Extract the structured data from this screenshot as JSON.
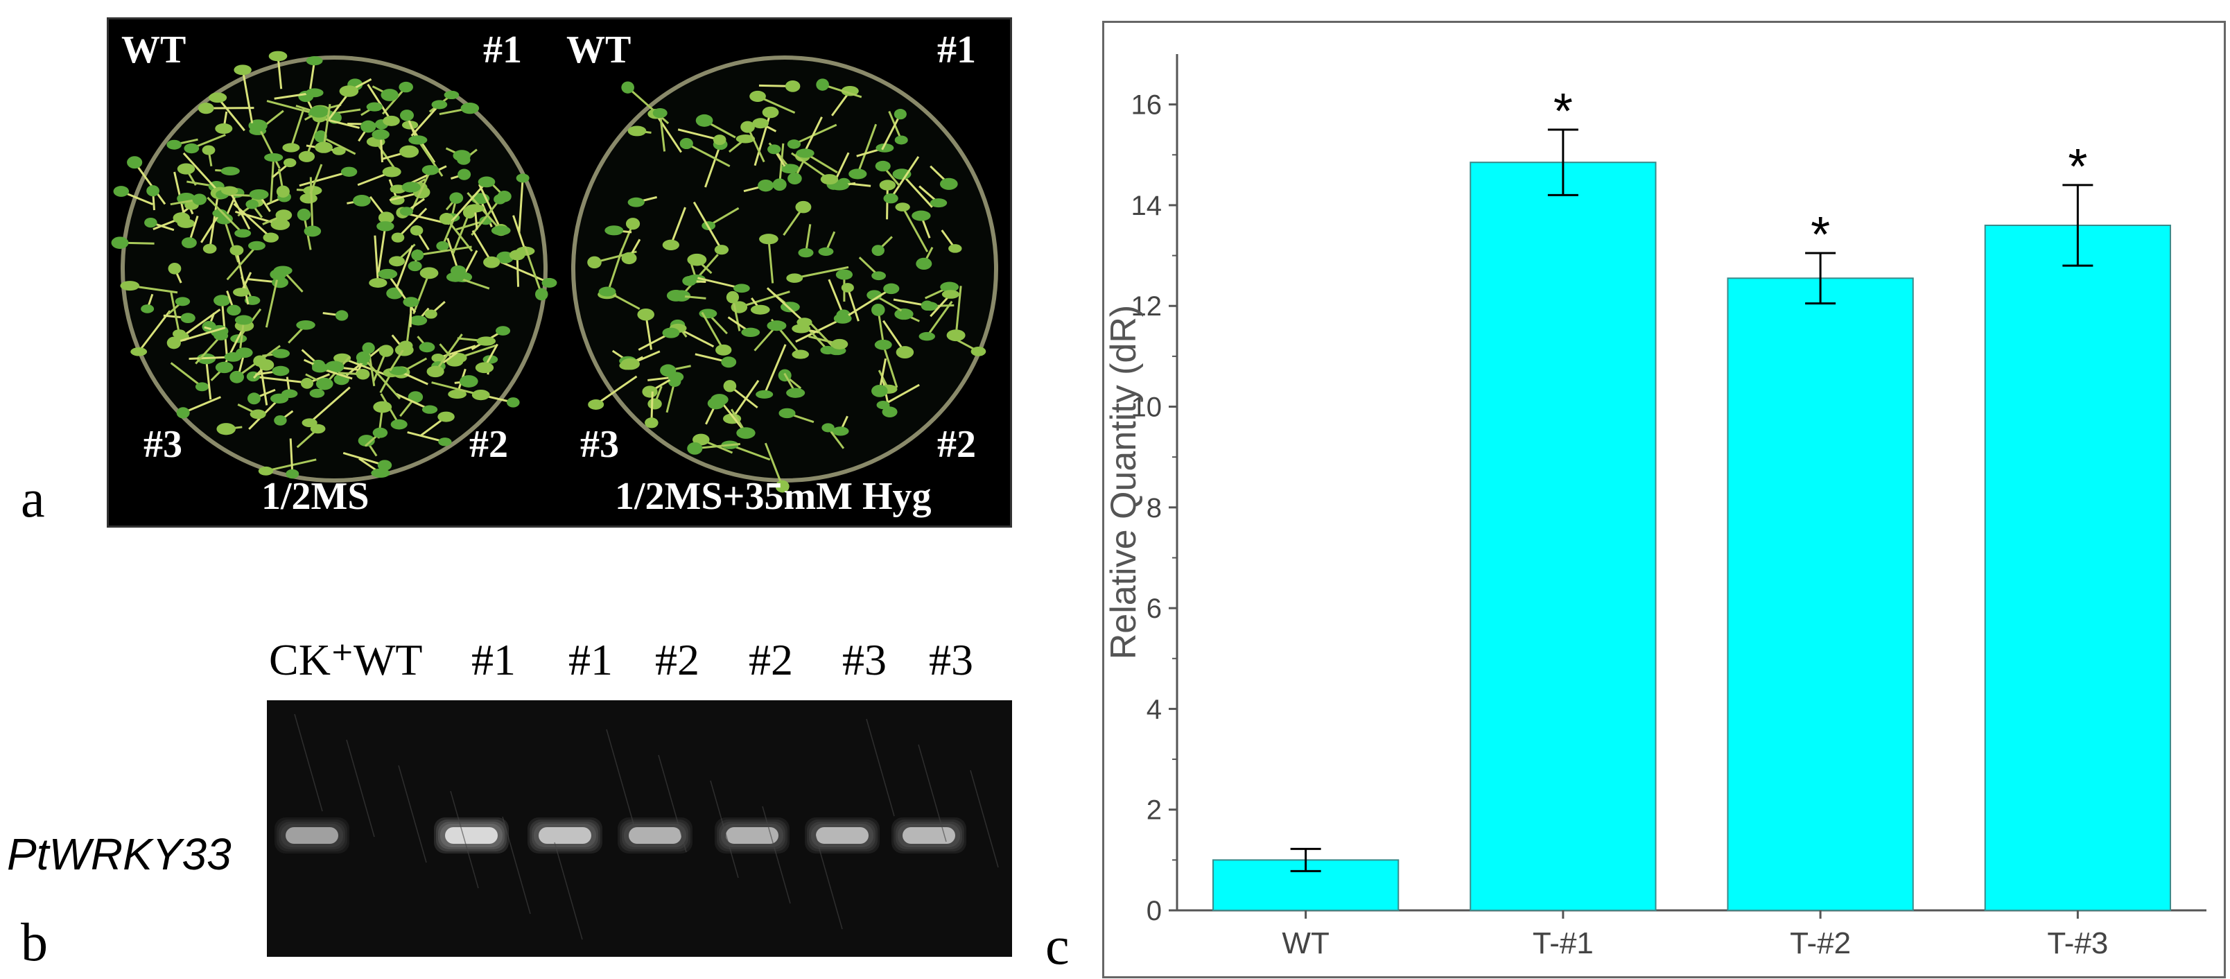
{
  "panels": {
    "a": {
      "letter": "a",
      "left_plate": {
        "labels": {
          "top_left": "WT",
          "top_right": "#1",
          "bottom_left": "#3",
          "bottom_right": "#2"
        },
        "caption": "1/2MS"
      },
      "right_plate": {
        "labels": {
          "top_left": "WT",
          "top_right": "#1",
          "bottom_left": "#3",
          "bottom_right": "#2"
        },
        "caption": "1/2MS+35mM Hyg"
      }
    },
    "b": {
      "letter": "b",
      "lanes": [
        "CK⁺",
        "WT",
        "#1",
        "#1",
        "#2",
        "#2",
        "#3",
        "#3"
      ],
      "gene": "PtWRKY33",
      "band_intensity": [
        0.45,
        0.0,
        1.0,
        0.75,
        0.6,
        0.6,
        0.65,
        0.65
      ]
    },
    "c": {
      "letter": "c"
    }
  },
  "chart_data": {
    "type": "bar",
    "categories": [
      "WT",
      "T-#1",
      "T-#2",
      "T-#3"
    ],
    "series": [
      {
        "values": [
          1.0,
          14.85,
          12.55,
          13.6
        ],
        "error": [
          0.22,
          0.65,
          0.5,
          0.8
        ],
        "significance": [
          "",
          "*",
          "*",
          "*"
        ]
      }
    ],
    "ylabel": "Relative Quantity (dR)",
    "xlabel": "",
    "title": "",
    "ylim": [
      0,
      17
    ],
    "yticks": [
      0,
      2,
      4,
      6,
      8,
      10,
      12,
      14,
      16
    ],
    "ytick_labels": [
      "0",
      "2",
      "4",
      "6",
      "8",
      "10",
      "12",
      "14",
      "16"
    ],
    "bar_color": "#00ffff",
    "bar_edge_color": "#3a8a8a",
    "grid": false,
    "legend": "none"
  },
  "colors": {
    "plate_bg": "#000000",
    "seedling_green": "#5aa83a",
    "seedling_yellow": "#d8e27a",
    "gel_bg": "#0d0d0d",
    "gel_band": "#e6e6e6"
  }
}
